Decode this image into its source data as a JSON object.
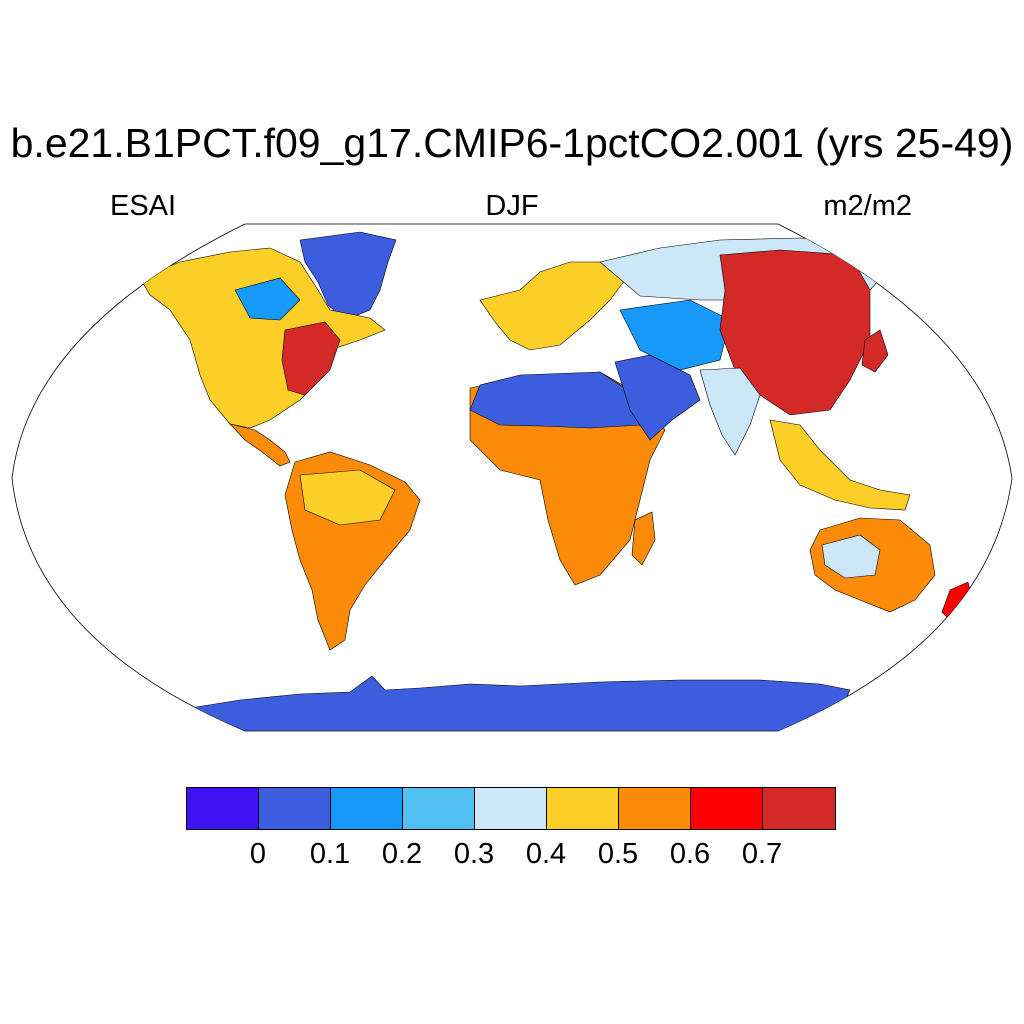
{
  "title": "b.e21.B1PCT.f09_g17.CMIP6-1pctCO2.001 (yrs 25-49)",
  "left_label": "ESAI",
  "center_label": "DJF",
  "right_label": "m2/m2",
  "colorbar": {
    "colors": [
      "#3f12f2",
      "#3c5ede",
      "#1699f8",
      "#52c1f2",
      "#cce8f8",
      "#fccf28",
      "#fc8b0a",
      "#fe0000",
      "#d42a27"
    ],
    "tick_labels": [
      "0",
      "0.1",
      "0.2",
      "0.3",
      "0.4",
      "0.5",
      "0.6",
      "0.7"
    ]
  },
  "map": {
    "projection": "Robinson",
    "regions": [
      {
        "name": "Antarctica",
        "level": 1
      },
      {
        "name": "Greenland",
        "level": 1
      },
      {
        "name": "Sahara",
        "level": 1
      },
      {
        "name": "Arabian Peninsula",
        "level": 1
      },
      {
        "name": "Eastern Asia",
        "level": 8
      },
      {
        "name": "Eastern North America",
        "level": 8
      },
      {
        "name": "South America",
        "level": 6
      },
      {
        "name": "Central Africa",
        "level": 6
      },
      {
        "name": "Australia interior",
        "level": 4
      }
    ]
  }
}
